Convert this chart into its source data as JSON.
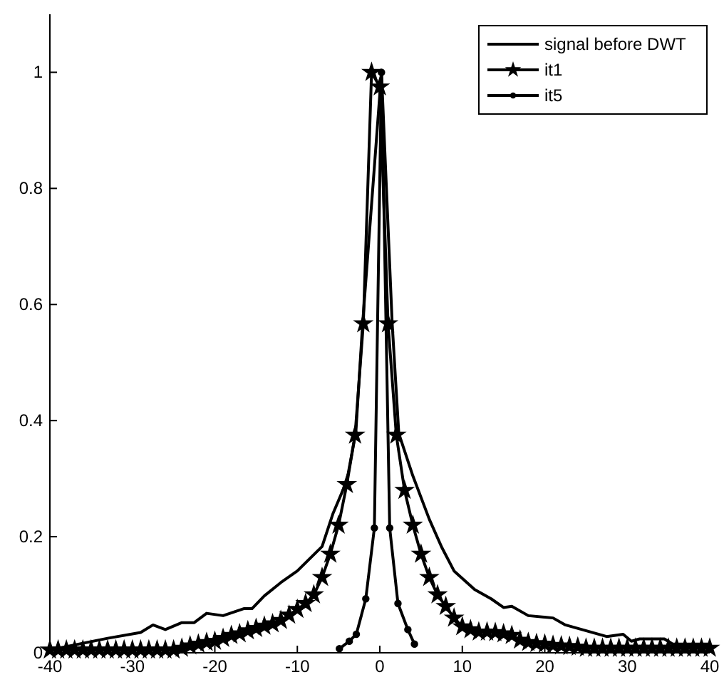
{
  "chart_data": {
    "type": "line",
    "xlim": [
      -40,
      40
    ],
    "xticks": [
      -40,
      -30,
      -20,
      -10,
      0,
      10,
      20,
      30,
      40
    ],
    "ylim": [
      0,
      1.1
    ],
    "yticks": [
      0,
      0.2,
      0.4,
      0.6,
      0.8,
      1
    ],
    "grid": false,
    "legend": "top right",
    "line_style": "solid",
    "series": [
      {
        "name": "signal before DWT",
        "color": "#000000",
        "marker": "none",
        "x": [
          -40,
          -33,
          -29,
          -27.5,
          -26,
          -24,
          -22.5,
          -21,
          -19,
          -16.5,
          -15.5,
          -14,
          -12,
          -10,
          -7,
          -5.7,
          -4,
          -2.9,
          -2.1,
          0.2,
          1.5,
          2.3,
          4,
          6,
          7.5,
          9,
          11.5,
          13.5,
          15,
          16,
          18,
          21,
          22.5,
          25.5,
          27.5,
          29.5,
          30.5,
          31.5,
          34.5,
          35.5,
          40
        ],
        "values": [
          0.005,
          0.025,
          0.035,
          0.048,
          0.04,
          0.052,
          0.052,
          0.068,
          0.064,
          0.076,
          0.076,
          0.098,
          0.121,
          0.141,
          0.183,
          0.239,
          0.296,
          0.381,
          0.564,
          1.0,
          0.567,
          0.378,
          0.305,
          0.23,
          0.182,
          0.141,
          0.109,
          0.093,
          0.078,
          0.08,
          0.064,
          0.06,
          0.048,
          0.036,
          0.028,
          0.032,
          0.02,
          0.024,
          0.024,
          0.015,
          0.015
        ]
      },
      {
        "name": "it1",
        "color": "#000000",
        "marker": "star",
        "x": [
          -40,
          -39,
          -38,
          -37,
          -36,
          -35,
          -34,
          -33,
          -32,
          -31,
          -30,
          -29,
          -28,
          -27,
          -26,
          -25,
          -24,
          -23,
          -22,
          -21,
          -20,
          -19,
          -18,
          -17,
          -16,
          -15,
          -14,
          -13,
          -12,
          -11,
          -10,
          -9,
          -8,
          -7,
          -6,
          -5,
          -4,
          -3,
          -2,
          -1,
          0,
          1,
          2,
          3,
          4,
          5,
          6,
          7,
          8,
          9,
          10,
          11,
          12,
          13,
          14,
          15,
          16,
          17,
          18,
          19,
          20,
          21,
          22,
          23,
          24,
          25,
          26,
          27,
          28,
          29,
          30,
          31,
          32,
          33,
          34,
          35,
          36,
          37,
          38,
          39,
          40
        ],
        "values": [
          0.005,
          0.005,
          0.005,
          0.005,
          0.005,
          0.005,
          0.005,
          0.005,
          0.005,
          0.005,
          0.005,
          0.005,
          0.005,
          0.005,
          0.005,
          0.005,
          0.008,
          0.012,
          0.015,
          0.018,
          0.02,
          0.025,
          0.03,
          0.033,
          0.038,
          0.042,
          0.046,
          0.05,
          0.056,
          0.065,
          0.075,
          0.085,
          0.1,
          0.13,
          0.17,
          0.22,
          0.29,
          0.375,
          0.567,
          1.0,
          0.975,
          0.567,
          0.375,
          0.28,
          0.22,
          0.17,
          0.13,
          0.1,
          0.08,
          0.06,
          0.045,
          0.04,
          0.036,
          0.036,
          0.035,
          0.033,
          0.03,
          0.022,
          0.018,
          0.016,
          0.015,
          0.013,
          0.012,
          0.011,
          0.01,
          0.008,
          0.008,
          0.008,
          0.008,
          0.008,
          0.008,
          0.008,
          0.008,
          0.008,
          0.008,
          0.008,
          0.008,
          0.008,
          0.008,
          0.008,
          0.008
        ]
      },
      {
        "name": "it5",
        "color": "#000000",
        "marker": "circle",
        "x": [
          -4.9,
          -3.7,
          -2.85,
          -1.7,
          -0.66,
          0.2,
          1.2,
          2.2,
          3.4,
          4.2
        ],
        "values": [
          0.007,
          0.02,
          0.032,
          0.093,
          0.215,
          1.0,
          0.215,
          0.085,
          0.04,
          0.015
        ]
      }
    ]
  }
}
